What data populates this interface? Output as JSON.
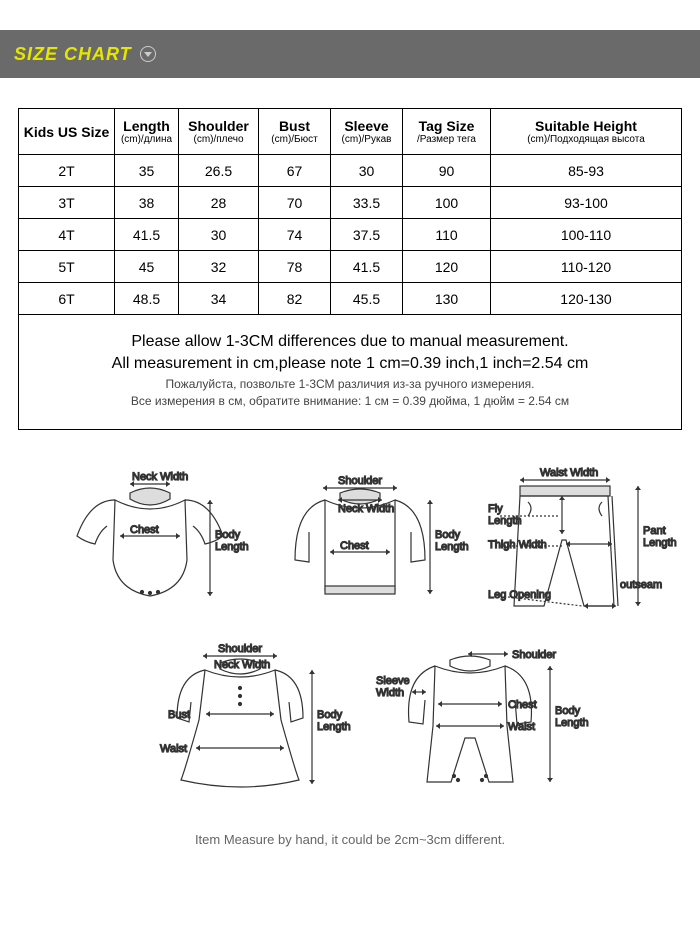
{
  "header": {
    "title": "SIZE CHART",
    "bar_color": "#6a6a6a",
    "title_color": "#e6e600"
  },
  "table": {
    "type": "table",
    "columns": [
      {
        "main": "Kids US Size",
        "sub": ""
      },
      {
        "main": "Length",
        "sub": "(cm)/длина"
      },
      {
        "main": "Shoulder",
        "sub": "(cm)/плечо"
      },
      {
        "main": "Bust",
        "sub": "(cm)/Бюст"
      },
      {
        "main": "Sleeve",
        "sub": "(cm)/Рукав"
      },
      {
        "main": "Tag Size",
        "sub": "/Размер тега"
      },
      {
        "main": "Suitable Height",
        "sub": "(cm)/Подходящая высота"
      }
    ],
    "rows": [
      [
        "2T",
        "35",
        "26.5",
        "67",
        "30",
        "90",
        "85-93"
      ],
      [
        "3T",
        "38",
        "28",
        "70",
        "33.5",
        "100",
        "93-100"
      ],
      [
        "4T",
        "41.5",
        "30",
        "74",
        "37.5",
        "110",
        "100-110"
      ],
      [
        "5T",
        "45",
        "32",
        "78",
        "41.5",
        "120",
        "110-120"
      ],
      [
        "6T",
        "48.5",
        "34",
        "82",
        "45.5",
        "130",
        "120-130"
      ]
    ],
    "border_color": "#000000",
    "text_color": "#000000",
    "header_fontsize": 14,
    "cell_fontsize": 14
  },
  "notes": {
    "line1": "Please allow 1-3CM differences due to manual measurement.",
    "line2": "All measurement in cm,please note 1 cm=0.39 inch,1 inch=2.54 cm",
    "line3": "Пожалуйста, позвольте 1-3СМ различия из-за ручного измерения.",
    "line4": "Все измерения в см, обратите внимание: 1 см = 0.39 дюйма, 1 дюйм = 2.54 см"
  },
  "diagram_labels": {
    "neck_width": "Neck Width",
    "shoulder": "Shoulder",
    "chest": "Chest",
    "body_length": "Body\nLength",
    "bust": "Bust",
    "waist": "Waist",
    "waist_width": "Waist Width",
    "fly_length": "Fly\nLength",
    "thigh_width": "Thigh Width",
    "leg_opening": "Leg Opening",
    "outseam": "outseam",
    "pant_length": "Pant\nLength",
    "sleeve_width": "Sleeve\nWidth"
  },
  "footer": {
    "text": "Item Measure by hand, it could be 2cm~3cm different."
  }
}
